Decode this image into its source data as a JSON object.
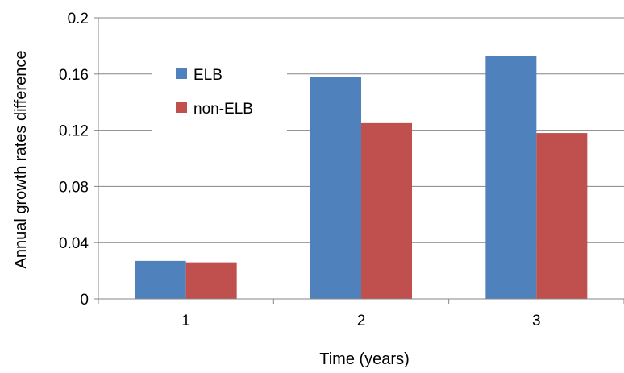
{
  "chart_data": {
    "type": "bar",
    "categories": [
      "1",
      "2",
      "3"
    ],
    "series": [
      {
        "name": "ELB",
        "values": [
          0.027,
          0.158,
          0.173
        ],
        "color": "#4F81BD"
      },
      {
        "name": "non-ELB",
        "values": [
          0.026,
          0.125,
          0.118
        ],
        "color": "#C0504D"
      }
    ],
    "ylim": [
      0,
      0.2
    ],
    "yticks": [
      "0",
      "0.04",
      "0.08",
      "0.12",
      "0.16",
      "0.2"
    ],
    "ytick_values": [
      0,
      0.04,
      0.08,
      0.12,
      0.16,
      0.2
    ],
    "xlabel": "Time (years)",
    "ylabel": "Annual growth rates difference",
    "grid": true,
    "legend_position": "top-left (inside plot)"
  }
}
